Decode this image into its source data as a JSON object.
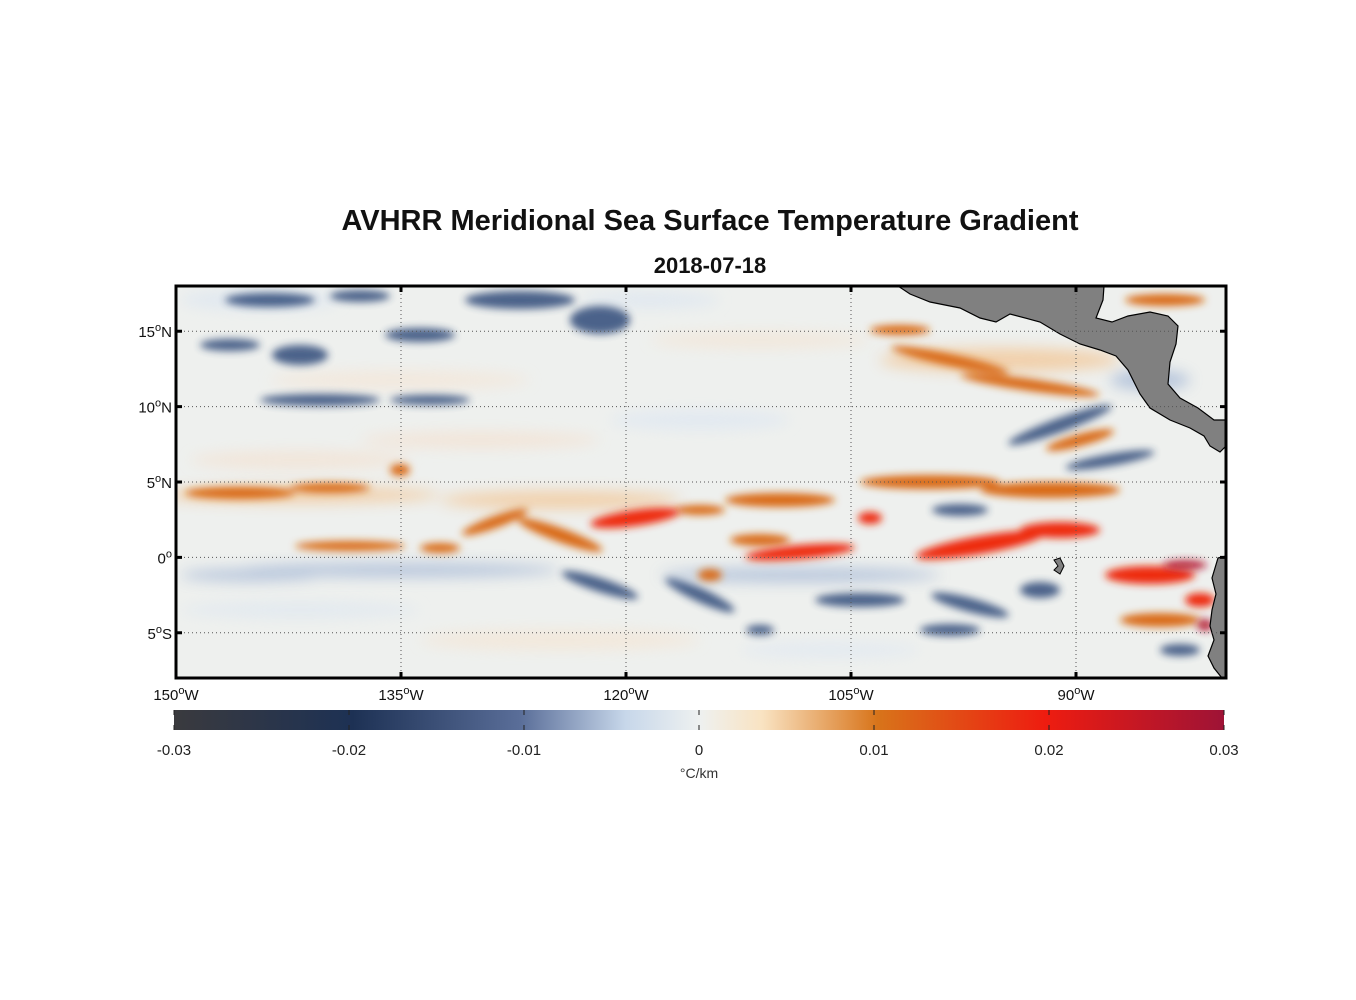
{
  "title": "AVHRR Meridional Sea Surface Temperature Gradient",
  "subtitle": "2018-07-18",
  "map": {
    "lon_range": [
      -150,
      -80
    ],
    "lat_range": [
      -8,
      18
    ],
    "lat_ticks": [
      {
        "value": 15,
        "num": "15",
        "hemi": "N"
      },
      {
        "value": 10,
        "num": "10",
        "hemi": "N"
      },
      {
        "value": 5,
        "num": "5",
        "hemi": "N"
      },
      {
        "value": 0,
        "num": "0",
        "hemi": ""
      },
      {
        "value": -5,
        "num": "5",
        "hemi": "S"
      }
    ],
    "lon_ticks": [
      {
        "value": -150,
        "num": "150",
        "hemi": "W"
      },
      {
        "value": -135,
        "num": "135",
        "hemi": "W"
      },
      {
        "value": -120,
        "num": "120",
        "hemi": "W"
      },
      {
        "value": -105,
        "num": "105",
        "hemi": "W"
      },
      {
        "value": -90,
        "num": "90",
        "hemi": "W"
      }
    ],
    "grid": "dotted",
    "land_color": "#808080",
    "variable": "meridional SST gradient"
  },
  "colorbar": {
    "range": [
      -0.03,
      0.03
    ],
    "ticks": [
      {
        "value": -0.03,
        "label": "-0.03"
      },
      {
        "value": -0.02,
        "label": "-0.02"
      },
      {
        "value": -0.01,
        "label": "-0.01"
      },
      {
        "value": 0,
        "label": "0"
      },
      {
        "value": 0.01,
        "label": "0.01"
      },
      {
        "value": 0.02,
        "label": "0.02"
      },
      {
        "value": 0.03,
        "label": "0.03"
      }
    ],
    "label": "°C/km",
    "colors": [
      "#3a3a3e",
      "#1d3154",
      "#5a6e99",
      "#e6eef2",
      "#f9e3c2",
      "#d8741a",
      "#ee1c10",
      "#9e1336"
    ]
  },
  "chart_data": {
    "type": "heatmap",
    "title": "AVHRR Meridional Sea Surface Temperature Gradient",
    "subtitle": "2018-07-18",
    "x_range": [
      -150,
      -80
    ],
    "y_range": [
      -8,
      18
    ],
    "z_range": [
      -0.03,
      0.03
    ],
    "z_label": "°C/km",
    "features": [
      {
        "desc": "positive front",
        "lon": [
          -150,
          -132
        ],
        "lat": [
          0.7,
          4.5
        ],
        "value": 0.008
      },
      {
        "desc": "positive front",
        "lon": [
          -132,
          -105
        ],
        "lat": [
          1,
          4
        ],
        "value": 0.015
      },
      {
        "desc": "positive front",
        "lon": [
          -105,
          -84
        ],
        "lat": [
          0.5,
          4
        ],
        "value": 0.017
      },
      {
        "desc": "positive front",
        "lon": [
          -90,
          -80
        ],
        "lat": [
          -2,
          0
        ],
        "value": 0.025
      },
      {
        "desc": "positive band",
        "lon": [
          -104,
          -88
        ],
        "lat": [
          11,
          15
        ],
        "value": 0.011
      },
      {
        "desc": "negative front",
        "lon": [
          -145,
          -125
        ],
        "lat": [
          12,
          18
        ],
        "value": -0.02
      },
      {
        "desc": "negative front",
        "lon": [
          -125,
          -95
        ],
        "lat": [
          -5,
          -1
        ],
        "value": -0.018
      },
      {
        "desc": "negative front",
        "lon": [
          -98,
          -86
        ],
        "lat": [
          7,
          10
        ],
        "value": -0.015
      }
    ]
  }
}
